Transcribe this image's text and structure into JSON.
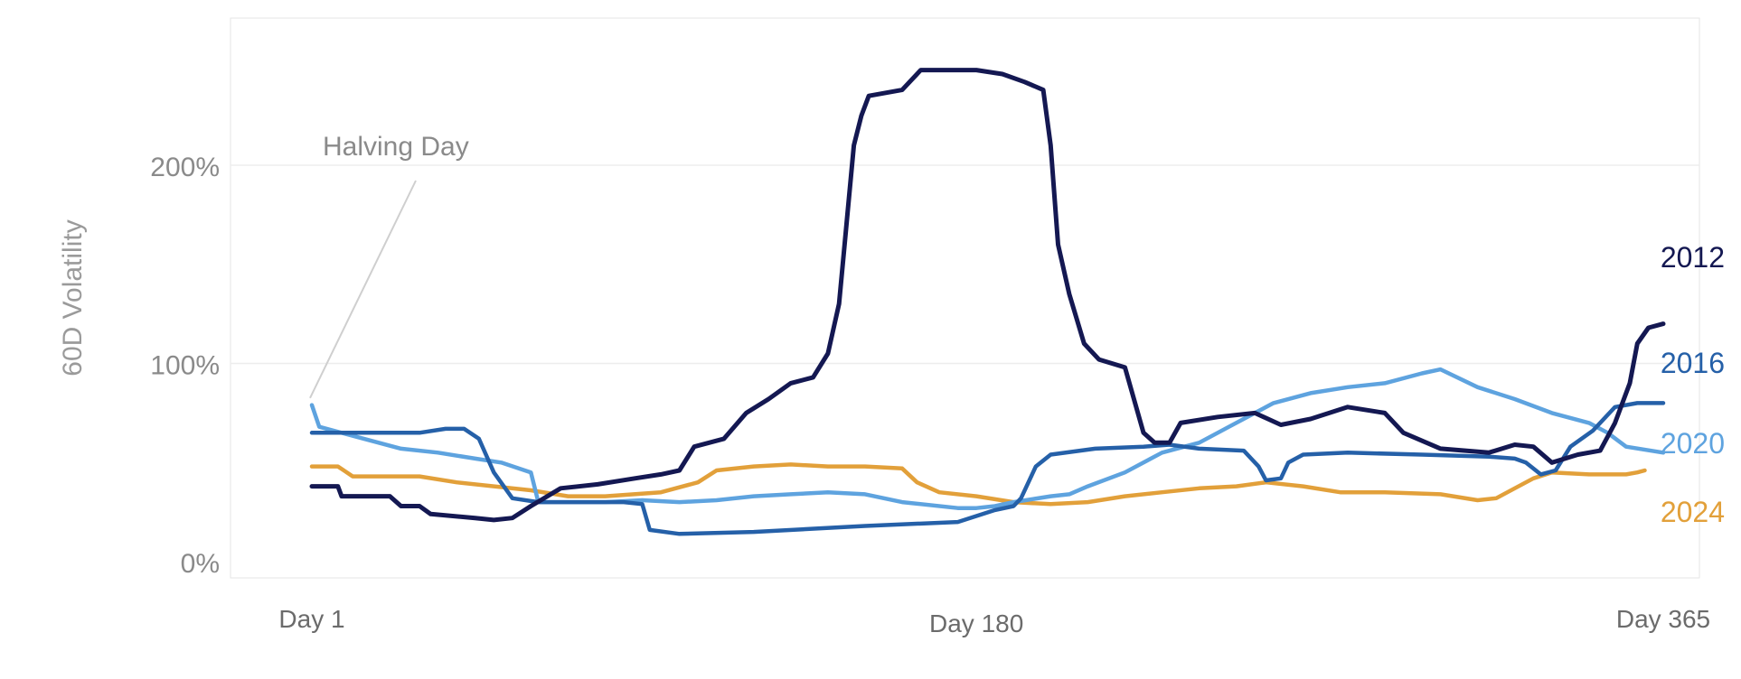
{
  "chart_data": {
    "type": "line",
    "title": "",
    "xlabel": "",
    "ylabel": "60D Volatility",
    "xlim": [
      1,
      365
    ],
    "ylim": [
      0,
      2.5
    ],
    "x_ticks": [
      {
        "value": 1,
        "label": "Day 1"
      },
      {
        "value": 180,
        "label": "Day 180"
      },
      {
        "value": 365,
        "label": "Day 365"
      }
    ],
    "y_ticks": [
      {
        "value": 0,
        "label": "0%"
      },
      {
        "value": 1,
        "label": "100%"
      },
      {
        "value": 2,
        "label": "200%"
      }
    ],
    "grid": {
      "horizontal": true,
      "vertical": false
    },
    "annotations": [
      {
        "text": "Halving Day",
        "x": 1,
        "y": 0.78
      }
    ],
    "series": [
      {
        "name": "2012",
        "color": "#141852",
        "points": [
          [
            1,
            0.38
          ],
          [
            8,
            0.38
          ],
          [
            9,
            0.33
          ],
          [
            22,
            0.33
          ],
          [
            25,
            0.28
          ],
          [
            30,
            0.28
          ],
          [
            33,
            0.24
          ],
          [
            45,
            0.22
          ],
          [
            50,
            0.21
          ],
          [
            55,
            0.22
          ],
          [
            60,
            0.28
          ],
          [
            68,
            0.37
          ],
          [
            78,
            0.39
          ],
          [
            88,
            0.42
          ],
          [
            95,
            0.44
          ],
          [
            100,
            0.46
          ],
          [
            104,
            0.58
          ],
          [
            112,
            0.62
          ],
          [
            118,
            0.75
          ],
          [
            124,
            0.82
          ],
          [
            130,
            0.9
          ],
          [
            136,
            0.93
          ],
          [
            140,
            1.05
          ],
          [
            143,
            1.3
          ],
          [
            145,
            1.7
          ],
          [
            147,
            2.1
          ],
          [
            149,
            2.25
          ],
          [
            151,
            2.35
          ],
          [
            160,
            2.38
          ],
          [
            165,
            2.48
          ],
          [
            180,
            2.48
          ],
          [
            187,
            2.46
          ],
          [
            193,
            2.42
          ],
          [
            198,
            2.38
          ],
          [
            200,
            2.1
          ],
          [
            202,
            1.6
          ],
          [
            205,
            1.35
          ],
          [
            209,
            1.1
          ],
          [
            213,
            1.02
          ],
          [
            220,
            0.98
          ],
          [
            225,
            0.65
          ],
          [
            228,
            0.6
          ],
          [
            232,
            0.6
          ],
          [
            235,
            0.7
          ],
          [
            245,
            0.73
          ],
          [
            255,
            0.75
          ],
          [
            262,
            0.69
          ],
          [
            270,
            0.72
          ],
          [
            280,
            0.78
          ],
          [
            290,
            0.75
          ],
          [
            295,
            0.65
          ],
          [
            305,
            0.57
          ],
          [
            318,
            0.55
          ],
          [
            325,
            0.59
          ],
          [
            330,
            0.58
          ],
          [
            335,
            0.5
          ],
          [
            342,
            0.54
          ],
          [
            348,
            0.56
          ],
          [
            352,
            0.7
          ],
          [
            356,
            0.9
          ],
          [
            358,
            1.1
          ],
          [
            361,
            1.18
          ],
          [
            365,
            1.2
          ]
        ]
      },
      {
        "name": "2016",
        "color": "#2560a8",
        "points": [
          [
            1,
            0.65
          ],
          [
            30,
            0.65
          ],
          [
            37,
            0.67
          ],
          [
            42,
            0.67
          ],
          [
            46,
            0.62
          ],
          [
            50,
            0.45
          ],
          [
            55,
            0.32
          ],
          [
            62,
            0.3
          ],
          [
            76,
            0.3
          ],
          [
            85,
            0.3
          ],
          [
            90,
            0.29
          ],
          [
            92,
            0.16
          ],
          [
            100,
            0.14
          ],
          [
            120,
            0.15
          ],
          [
            150,
            0.18
          ],
          [
            175,
            0.2
          ],
          [
            185,
            0.26
          ],
          [
            190,
            0.28
          ],
          [
            192,
            0.32
          ],
          [
            196,
            0.48
          ],
          [
            200,
            0.54
          ],
          [
            212,
            0.57
          ],
          [
            225,
            0.58
          ],
          [
            232,
            0.59
          ],
          [
            240,
            0.57
          ],
          [
            252,
            0.56
          ],
          [
            256,
            0.48
          ],
          [
            258,
            0.41
          ],
          [
            262,
            0.42
          ],
          [
            264,
            0.5
          ],
          [
            268,
            0.54
          ],
          [
            280,
            0.55
          ],
          [
            300,
            0.54
          ],
          [
            318,
            0.53
          ],
          [
            325,
            0.52
          ],
          [
            328,
            0.5
          ],
          [
            332,
            0.44
          ],
          [
            336,
            0.46
          ],
          [
            340,
            0.58
          ],
          [
            346,
            0.66
          ],
          [
            352,
            0.78
          ],
          [
            358,
            0.8
          ],
          [
            365,
            0.8
          ]
        ]
      },
      {
        "name": "2020",
        "color": "#5ea3df",
        "points": [
          [
            1,
            0.79
          ],
          [
            3,
            0.68
          ],
          [
            15,
            0.62
          ],
          [
            25,
            0.57
          ],
          [
            35,
            0.55
          ],
          [
            45,
            0.52
          ],
          [
            52,
            0.5
          ],
          [
            60,
            0.45
          ],
          [
            62,
            0.3
          ],
          [
            70,
            0.3
          ],
          [
            80,
            0.3
          ],
          [
            90,
            0.31
          ],
          [
            100,
            0.3
          ],
          [
            110,
            0.31
          ],
          [
            120,
            0.33
          ],
          [
            130,
            0.34
          ],
          [
            140,
            0.35
          ],
          [
            150,
            0.34
          ],
          [
            160,
            0.3
          ],
          [
            175,
            0.27
          ],
          [
            180,
            0.27
          ],
          [
            185,
            0.28
          ],
          [
            190,
            0.3
          ],
          [
            200,
            0.33
          ],
          [
            205,
            0.34
          ],
          [
            210,
            0.38
          ],
          [
            220,
            0.45
          ],
          [
            230,
            0.55
          ],
          [
            240,
            0.6
          ],
          [
            248,
            0.68
          ],
          [
            255,
            0.75
          ],
          [
            260,
            0.8
          ],
          [
            270,
            0.85
          ],
          [
            280,
            0.88
          ],
          [
            290,
            0.9
          ],
          [
            300,
            0.95
          ],
          [
            305,
            0.97
          ],
          [
            315,
            0.88
          ],
          [
            325,
            0.82
          ],
          [
            335,
            0.75
          ],
          [
            345,
            0.7
          ],
          [
            350,
            0.65
          ],
          [
            355,
            0.58
          ],
          [
            365,
            0.55
          ]
        ]
      },
      {
        "name": "2024",
        "color": "#e2a03a",
        "points": [
          [
            1,
            0.48
          ],
          [
            8,
            0.48
          ],
          [
            12,
            0.43
          ],
          [
            30,
            0.43
          ],
          [
            40,
            0.4
          ],
          [
            60,
            0.36
          ],
          [
            70,
            0.33
          ],
          [
            80,
            0.33
          ],
          [
            95,
            0.35
          ],
          [
            105,
            0.4
          ],
          [
            110,
            0.46
          ],
          [
            120,
            0.48
          ],
          [
            130,
            0.49
          ],
          [
            140,
            0.48
          ],
          [
            150,
            0.48
          ],
          [
            160,
            0.47
          ],
          [
            164,
            0.4
          ],
          [
            170,
            0.35
          ],
          [
            180,
            0.33
          ],
          [
            190,
            0.3
          ],
          [
            200,
            0.29
          ],
          [
            210,
            0.3
          ],
          [
            220,
            0.33
          ],
          [
            230,
            0.35
          ],
          [
            240,
            0.37
          ],
          [
            250,
            0.38
          ],
          [
            258,
            0.4
          ],
          [
            268,
            0.38
          ],
          [
            278,
            0.35
          ],
          [
            290,
            0.35
          ],
          [
            305,
            0.34
          ],
          [
            315,
            0.31
          ],
          [
            320,
            0.32
          ],
          [
            325,
            0.37
          ],
          [
            330,
            0.42
          ],
          [
            335,
            0.45
          ],
          [
            345,
            0.44
          ],
          [
            355,
            0.44
          ],
          [
            358,
            0.45
          ],
          [
            360,
            0.46
          ]
        ]
      }
    ]
  }
}
